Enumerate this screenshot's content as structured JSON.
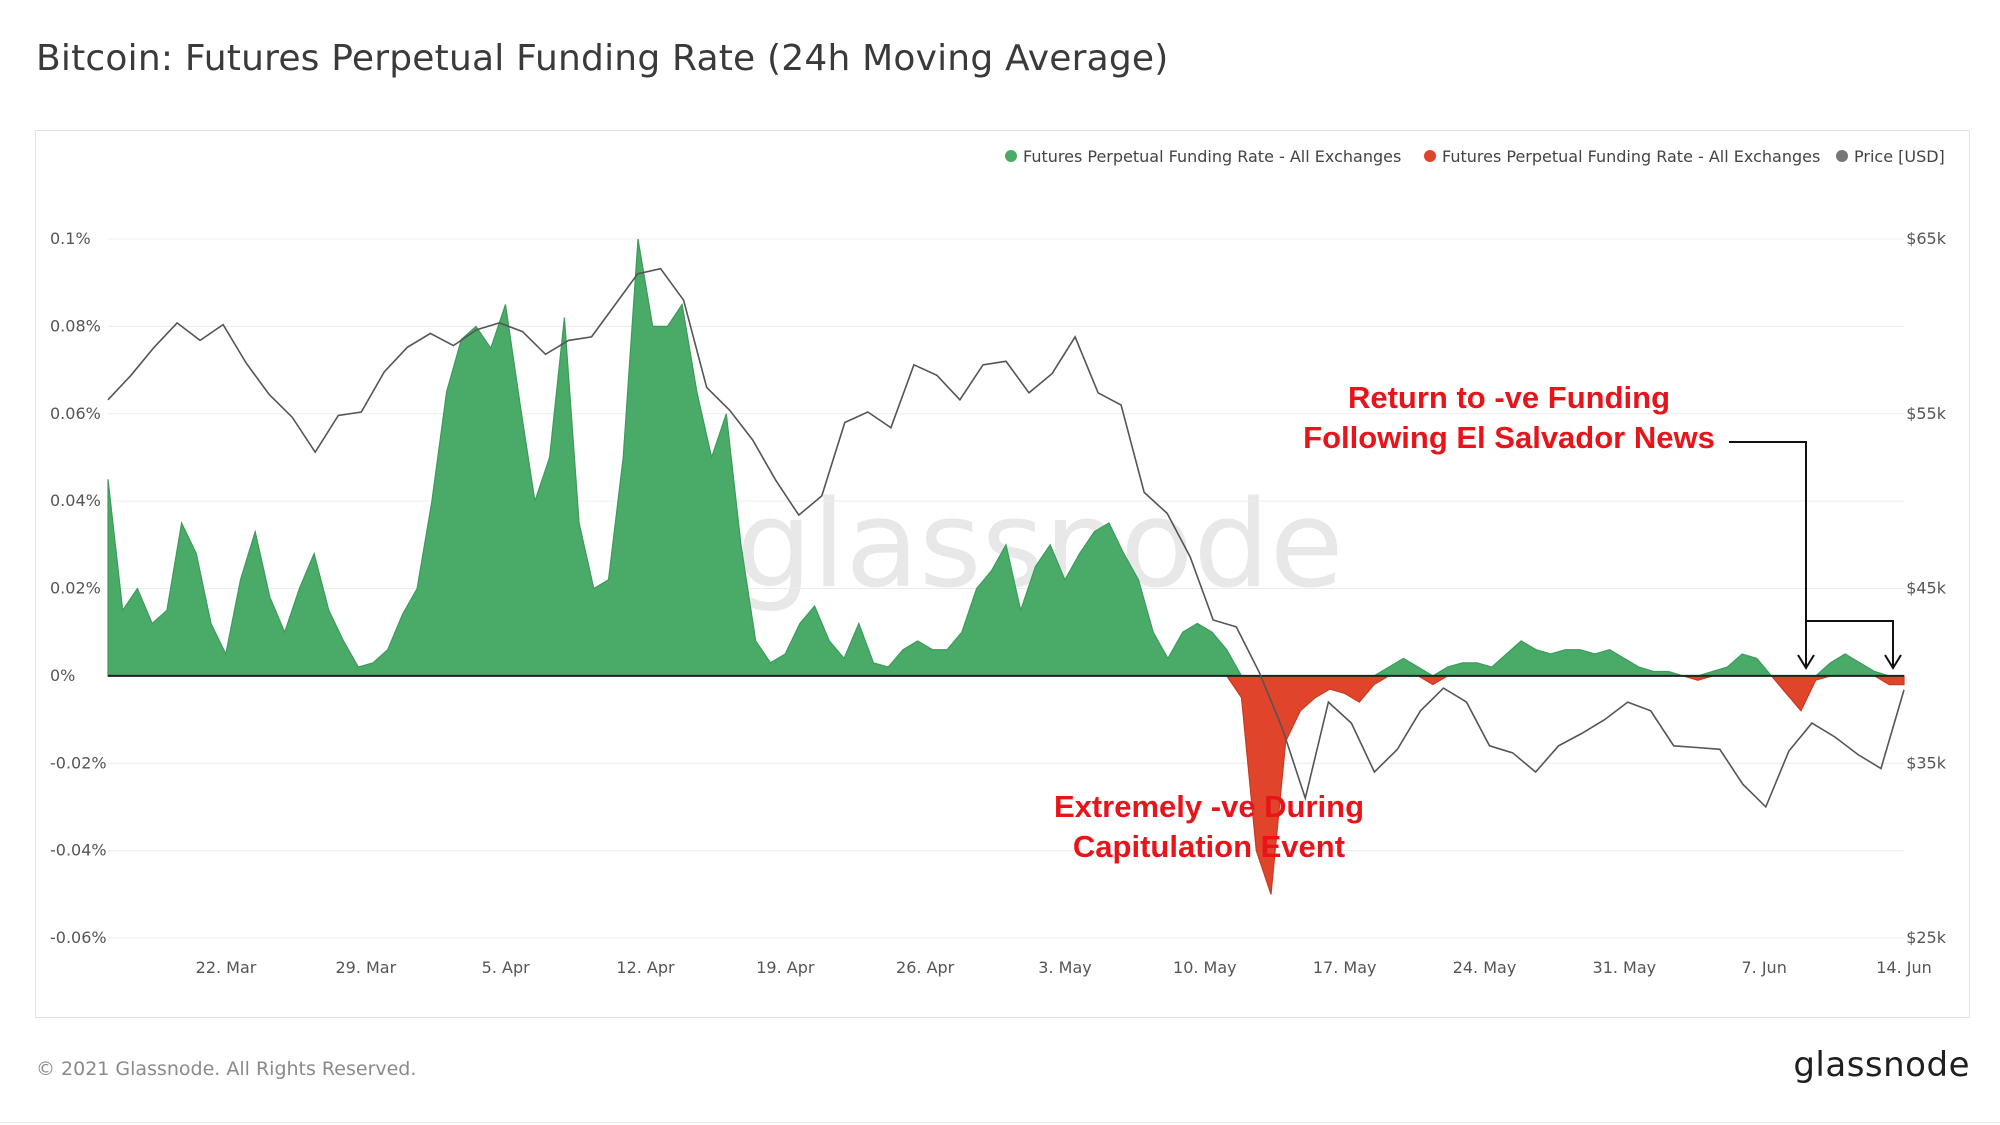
{
  "page": {
    "title": "Bitcoin: Futures Perpetual Funding Rate (24h Moving Average)",
    "footer_copyright": "© 2021 Glassnode. All Rights Reserved.",
    "footer_logo": "glassnode",
    "watermark": "glassnode"
  },
  "chart_data": {
    "type": "area",
    "x_ticks": [
      "22. Mar",
      "29. Mar",
      "5. Apr",
      "12. Apr",
      "19. Apr",
      "26. Apr",
      "3. May",
      "10. May",
      "17. May",
      "24. May",
      "31. May",
      "7. Jun",
      "14. Jun"
    ],
    "x_range": [
      "2021-03-16",
      "2021-06-14"
    ],
    "y_left": {
      "ticks": [
        "0.1%",
        "0.08%",
        "0.06%",
        "0.04%",
        "0.02%",
        "0%",
        "-0.02%",
        "-0.04%",
        "-0.06%"
      ],
      "range": [
        -0.06,
        0.1
      ],
      "unit": "%"
    },
    "y_right": {
      "ticks": [
        "$65k",
        "$55k",
        "$45k",
        "$35k",
        "$25k"
      ],
      "range": [
        25000,
        65000
      ],
      "unit": "USD"
    },
    "grid": true,
    "legend_position": "top-right",
    "legend": [
      {
        "label": "Futures Perpetual Funding Rate - All Exchanges",
        "color": "#4aaa68"
      },
      {
        "label": "Futures Perpetual Funding Rate - All Exchanges",
        "color": "#e0442b"
      },
      {
        "label": "Price [USD]",
        "color": "#777777"
      }
    ],
    "colors": {
      "positive": "#4aaa68",
      "negative": "#e0442b",
      "price": "#555555"
    },
    "funding_rate": [
      [
        0,
        0.045
      ],
      [
        1,
        0.015
      ],
      [
        2,
        0.02
      ],
      [
        3,
        0.012
      ],
      [
        4,
        0.015
      ],
      [
        5,
        0.035
      ],
      [
        6,
        0.028
      ],
      [
        7,
        0.012
      ],
      [
        8,
        0.005
      ],
      [
        9,
        0.022
      ],
      [
        10,
        0.033
      ],
      [
        11,
        0.018
      ],
      [
        12,
        0.01
      ],
      [
        13,
        0.02
      ],
      [
        14,
        0.028
      ],
      [
        15,
        0.015
      ],
      [
        16,
        0.008
      ],
      [
        17,
        0.002
      ],
      [
        18,
        0.003
      ],
      [
        19,
        0.006
      ],
      [
        20,
        0.014
      ],
      [
        21,
        0.02
      ],
      [
        22,
        0.04
      ],
      [
        23,
        0.065
      ],
      [
        24,
        0.077
      ],
      [
        25,
        0.08
      ],
      [
        26,
        0.075
      ],
      [
        27,
        0.085
      ],
      [
        28,
        0.062
      ],
      [
        29,
        0.04
      ],
      [
        30,
        0.05
      ],
      [
        31,
        0.082
      ],
      [
        32,
        0.035
      ],
      [
        33,
        0.02
      ],
      [
        34,
        0.022
      ],
      [
        35,
        0.05
      ],
      [
        36,
        0.1
      ],
      [
        37,
        0.08
      ],
      [
        38,
        0.08
      ],
      [
        39,
        0.085
      ],
      [
        40,
        0.065
      ],
      [
        41,
        0.05
      ],
      [
        42,
        0.06
      ],
      [
        43,
        0.03
      ],
      [
        44,
        0.008
      ],
      [
        45,
        0.003
      ],
      [
        46,
        0.005
      ],
      [
        47,
        0.012
      ],
      [
        48,
        0.016
      ],
      [
        49,
        0.008
      ],
      [
        50,
        0.004
      ],
      [
        51,
        0.012
      ],
      [
        52,
        0.003
      ],
      [
        53,
        0.002
      ],
      [
        54,
        0.006
      ],
      [
        55,
        0.008
      ],
      [
        56,
        0.006
      ],
      [
        57,
        0.006
      ],
      [
        58,
        0.01
      ],
      [
        59,
        0.02
      ],
      [
        60,
        0.024
      ],
      [
        61,
        0.03
      ],
      [
        62,
        0.015
      ],
      [
        63,
        0.025
      ],
      [
        64,
        0.03
      ],
      [
        65,
        0.022
      ],
      [
        66,
        0.028
      ],
      [
        67,
        0.033
      ],
      [
        68,
        0.035
      ],
      [
        69,
        0.028
      ],
      [
        70,
        0.022
      ],
      [
        71,
        0.01
      ],
      [
        72,
        0.004
      ],
      [
        73,
        0.01
      ],
      [
        74,
        0.012
      ],
      [
        75,
        0.01
      ],
      [
        76,
        0.006
      ],
      [
        77,
        -0.005
      ],
      [
        78,
        -0.04
      ],
      [
        79,
        -0.05
      ],
      [
        80,
        -0.015
      ],
      [
        81,
        -0.008
      ],
      [
        82,
        -0.005
      ],
      [
        83,
        -0.003
      ],
      [
        84,
        -0.004
      ],
      [
        85,
        -0.006
      ],
      [
        86,
        -0.002
      ],
      [
        87,
        0.002
      ],
      [
        88,
        0.004
      ],
      [
        89,
        0.002
      ],
      [
        90,
        -0.002
      ],
      [
        91,
        0.002
      ],
      [
        92,
        0.003
      ],
      [
        93,
        0.003
      ],
      [
        94,
        0.002
      ],
      [
        95,
        0.005
      ],
      [
        96,
        0.008
      ],
      [
        97,
        0.006
      ],
      [
        98,
        0.005
      ],
      [
        99,
        0.006
      ],
      [
        100,
        0.006
      ],
      [
        101,
        0.005
      ],
      [
        102,
        0.006
      ],
      [
        103,
        0.004
      ],
      [
        104,
        0.002
      ],
      [
        105,
        0.001
      ],
      [
        106,
        0.001
      ],
      [
        107,
        0.0
      ],
      [
        108,
        -0.001
      ],
      [
        109,
        0.001
      ],
      [
        110,
        0.002
      ],
      [
        111,
        0.005
      ],
      [
        112,
        0.004
      ],
      [
        113,
        0.0
      ],
      [
        114,
        -0.004
      ],
      [
        115,
        -0.008
      ],
      [
        116,
        -0.001
      ],
      [
        117,
        0.003
      ],
      [
        118,
        0.005
      ],
      [
        119,
        0.003
      ],
      [
        120,
        0.001
      ],
      [
        121,
        -0.002
      ],
      [
        122,
        -0.002
      ]
    ],
    "price_usd": [
      [
        0,
        55800
      ],
      [
        1,
        57200
      ],
      [
        2,
        58800
      ],
      [
        3,
        60200
      ],
      [
        4,
        59200
      ],
      [
        5,
        60100
      ],
      [
        6,
        57900
      ],
      [
        7,
        56100
      ],
      [
        8,
        54800
      ],
      [
        9,
        52800
      ],
      [
        10,
        54900
      ],
      [
        11,
        55100
      ],
      [
        12,
        57400
      ],
      [
        13,
        58800
      ],
      [
        14,
        59600
      ],
      [
        15,
        58900
      ],
      [
        16,
        59800
      ],
      [
        17,
        60200
      ],
      [
        18,
        59700
      ],
      [
        19,
        58400
      ],
      [
        20,
        59200
      ],
      [
        21,
        59400
      ],
      [
        22,
        61200
      ],
      [
        23,
        63000
      ],
      [
        24,
        63300
      ],
      [
        25,
        61500
      ],
      [
        26,
        56500
      ],
      [
        27,
        55200
      ],
      [
        28,
        53500
      ],
      [
        29,
        51200
      ],
      [
        30,
        49200
      ],
      [
        31,
        50300
      ],
      [
        32,
        54500
      ],
      [
        33,
        55100
      ],
      [
        34,
        54200
      ],
      [
        35,
        57800
      ],
      [
        36,
        57200
      ],
      [
        37,
        55800
      ],
      [
        38,
        57800
      ],
      [
        39,
        58000
      ],
      [
        40,
        56200
      ],
      [
        41,
        57300
      ],
      [
        42,
        59400
      ],
      [
        43,
        56200
      ],
      [
        44,
        55500
      ],
      [
        45,
        50500
      ],
      [
        46,
        49300
      ],
      [
        47,
        46800
      ],
      [
        48,
        43200
      ],
      [
        49,
        42800
      ],
      [
        50,
        40200
      ],
      [
        51,
        37000
      ],
      [
        52,
        33000
      ],
      [
        53,
        38500
      ],
      [
        54,
        37300
      ],
      [
        55,
        34500
      ],
      [
        56,
        35800
      ],
      [
        57,
        38000
      ],
      [
        58,
        39300
      ],
      [
        59,
        38500
      ],
      [
        60,
        36000
      ],
      [
        61,
        35600
      ],
      [
        62,
        34500
      ],
      [
        63,
        36000
      ],
      [
        64,
        36700
      ],
      [
        65,
        37500
      ],
      [
        66,
        38500
      ],
      [
        67,
        38000
      ],
      [
        68,
        36000
      ],
      [
        69,
        35900
      ],
      [
        70,
        35800
      ],
      [
        71,
        33800
      ],
      [
        72,
        32500
      ],
      [
        73,
        35700
      ],
      [
        74,
        37300
      ],
      [
        75,
        36500
      ],
      [
        76,
        35500
      ],
      [
        77,
        34700
      ],
      [
        78,
        39200
      ]
    ],
    "annotations": [
      {
        "text_lines": [
          "Return to -ve Funding",
          "Following El Salvador News"
        ],
        "color": "#e8141a"
      },
      {
        "text_lines": [
          "Extremely -ve During",
          "Capitulation Event"
        ],
        "color": "#e8141a"
      }
    ]
  }
}
